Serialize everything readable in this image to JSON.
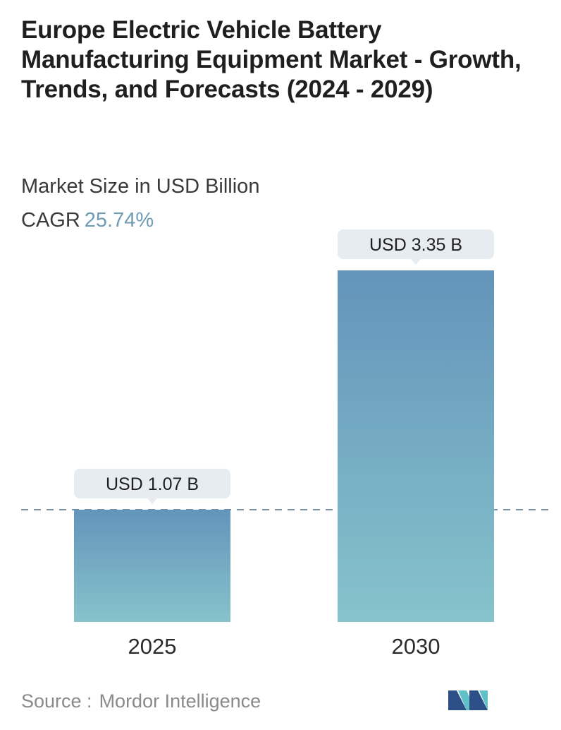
{
  "header": {
    "title": "Europe Electric Vehicle Battery Manufacturing Equipment Market - Growth, Trends, and Forecasts (2024 - 2029)",
    "subtitle": "Market Size in USD Billion",
    "cagr_label": "CAGR",
    "cagr_value": "25.74%"
  },
  "chart_data": {
    "type": "bar",
    "categories": [
      "2025",
      "2030"
    ],
    "values": [
      1.07,
      3.35
    ],
    "value_labels": [
      "USD 1.07 B",
      "USD 3.35 B"
    ],
    "title": "Europe Electric Vehicle Battery Manufacturing Equipment Market - Growth, Trends, and Forecasts (2024 - 2029)",
    "ylabel": "Market Size in USD Billion",
    "ylim": [
      0,
      3.35
    ],
    "grid": false,
    "reference_line": 1.07,
    "colors": {
      "bar_top": "#6394ba",
      "bar_bottom": "#86c3cb",
      "label_bg": "#e6ecef",
      "dash": "#5f7f93"
    }
  },
  "footer": {
    "source_label": "Source :",
    "source_value": "Mordor Intelligence",
    "logo_colors": [
      "#2d4f87",
      "#5fc0c8"
    ]
  }
}
